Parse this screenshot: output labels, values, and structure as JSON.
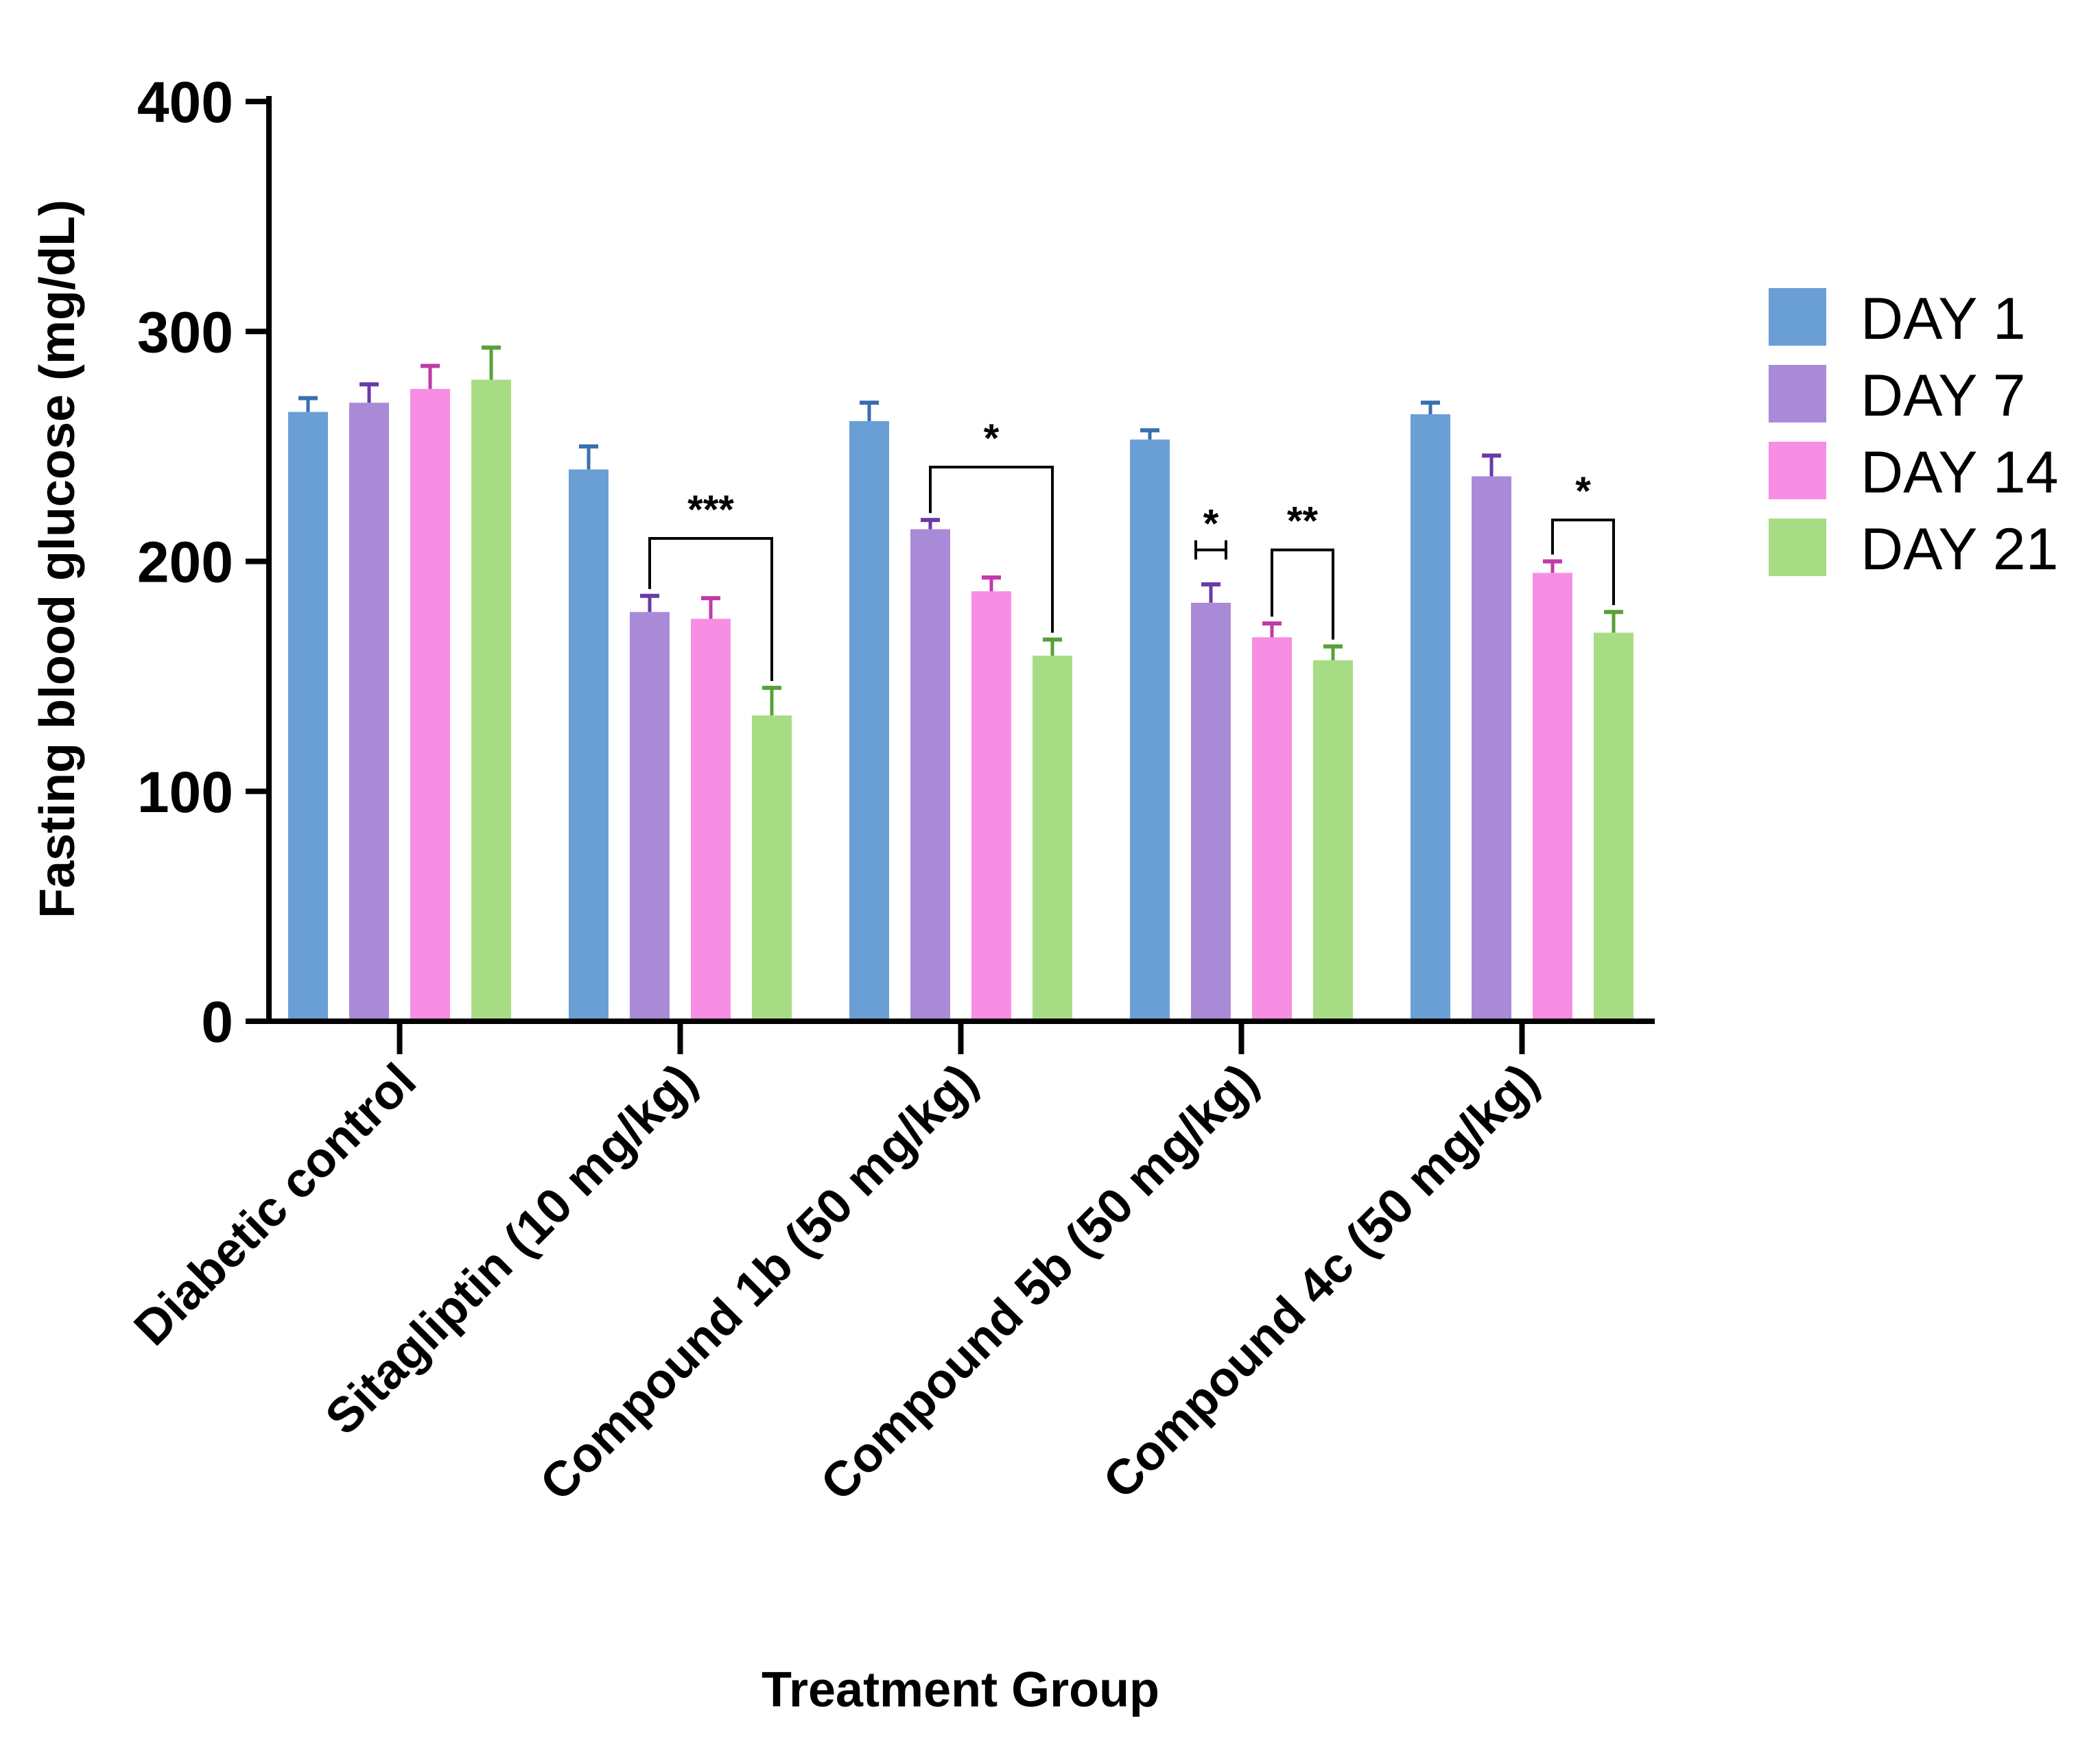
{
  "chart_data": {
    "type": "bar",
    "title": "",
    "xlabel": "Treatment Group",
    "ylabel": "Fasting blood glucose (mg/dL)",
    "ylim": [
      0,
      400
    ],
    "yticks": [
      "0",
      "100",
      "200",
      "300",
      "400"
    ],
    "categories": [
      "Diabetic control",
      "Sitagliptin (10 mg/kg)",
      "Compound 1b (50 mg/kg)",
      "Compound 5b (50 mg/kg)",
      "Compound 4c (50 mg/kg)"
    ],
    "series": [
      {
        "name": "DAY 1",
        "color": "#6a9fd6",
        "error_color": "#3a6fae",
        "values": [
          265,
          240,
          261,
          253,
          264
        ],
        "errors": [
          6,
          10,
          8,
          4,
          5
        ]
      },
      {
        "name": "DAY 7",
        "color": "#a98ad6",
        "error_color": "#6a3aa8",
        "values": [
          269,
          178,
          214,
          182,
          237
        ],
        "errors": [
          8,
          7,
          4,
          8,
          9
        ]
      },
      {
        "name": "DAY 14",
        "color": "#f78ee3",
        "error_color": "#c23aa8",
        "values": [
          275,
          175,
          187,
          167,
          195
        ],
        "errors": [
          10,
          9,
          6,
          6,
          5
        ]
      },
      {
        "name": "DAY 21",
        "color": "#a8dc84",
        "error_color": "#58a038",
        "values": [
          279,
          133,
          159,
          157,
          169
        ],
        "errors": [
          14,
          12,
          7,
          6,
          9
        ]
      }
    ],
    "annotations": [
      {
        "label": "***",
        "category": 1,
        "from_series": 1,
        "to_series": 3,
        "y_level": 210
      },
      {
        "label": "*",
        "category": 2,
        "from_series": 1,
        "to_series": 3,
        "y_level": 241
      },
      {
        "label": "*",
        "category": 3,
        "from_series": 1,
        "to_series": 1,
        "y_level": 205
      },
      {
        "label": "**",
        "category": 3,
        "from_series": 2,
        "to_series": 3,
        "y_level": 205
      },
      {
        "label": "*",
        "category": 4,
        "from_series": 2,
        "to_series": 3,
        "y_level": 218
      }
    ],
    "legend_position": "right"
  }
}
